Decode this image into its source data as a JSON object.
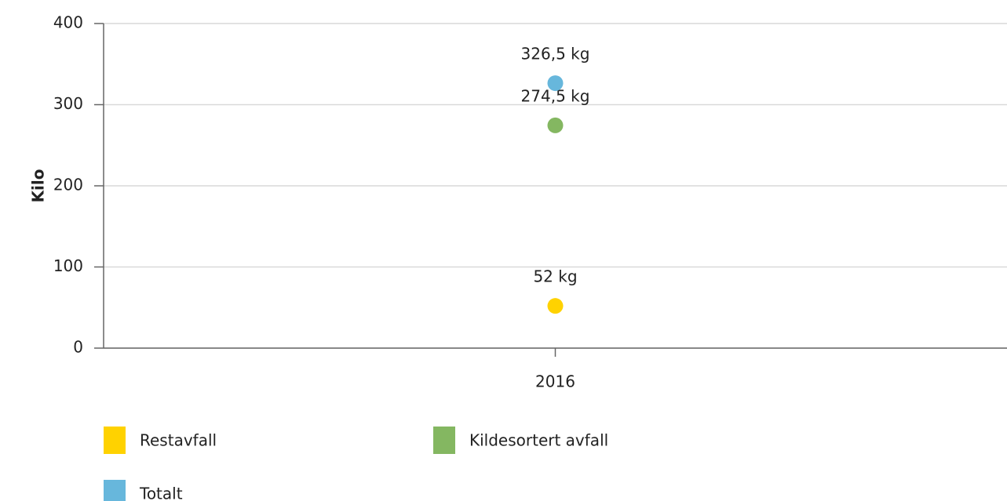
{
  "chart_data": {
    "type": "line",
    "ylabel": "Kilo",
    "categories": [
      "2016"
    ],
    "series": [
      {
        "name": "Restavfall",
        "color": "#ffd200",
        "values": [
          52
        ],
        "value_labels": [
          "52 kg"
        ]
      },
      {
        "name": "Kildesortert avfall",
        "color": "#84b761",
        "values": [
          274.5
        ],
        "value_labels": [
          "274,5 kg"
        ]
      },
      {
        "name": "Totalt",
        "color": "#67b7dc",
        "values": [
          326.5
        ],
        "value_labels": [
          "326,5 kg"
        ]
      }
    ],
    "ylim": [
      0,
      400
    ],
    "yticks": [
      0,
      100,
      200,
      300,
      400
    ],
    "grid": true,
    "legend": "bottom"
  }
}
